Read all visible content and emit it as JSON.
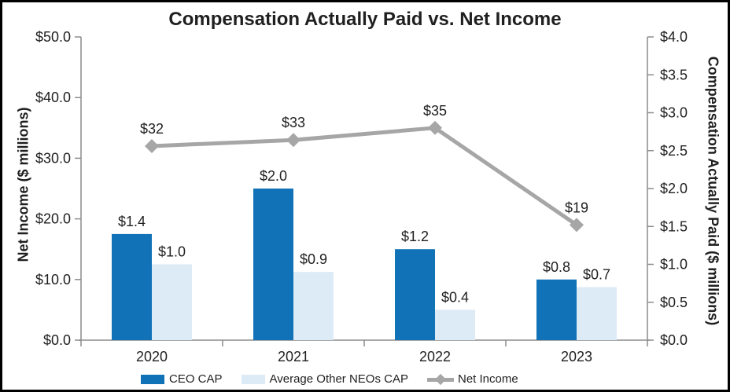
{
  "title": "Compensation Actually Paid vs. Net Income",
  "chart_data": {
    "type": "combo-bar-line",
    "title": "Compensation Actually Paid vs. Net Income",
    "categories": [
      "2020",
      "2021",
      "2022",
      "2023"
    ],
    "series": [
      {
        "name": "CEO CAP",
        "type": "bar",
        "axis": "right",
        "color": "#1172B8",
        "values": [
          1.4,
          2.0,
          1.2,
          0.8
        ],
        "labels": [
          "$1.4",
          "$2.0",
          "$1.2",
          "$0.8"
        ]
      },
      {
        "name": "Average Other NEOs CAP",
        "type": "bar",
        "axis": "right",
        "color": "#DDEBF7",
        "values": [
          1.0,
          0.9,
          0.4,
          0.7
        ],
        "labels": [
          "$1.0",
          "$0.9",
          "$0.4",
          "$0.7"
        ]
      },
      {
        "name": "Net Income",
        "type": "line",
        "axis": "left",
        "marker": "diamond",
        "color": "#A6A6A6",
        "values": [
          32,
          33,
          35,
          19
        ],
        "labels": [
          "$32",
          "$33",
          "$35",
          "$19"
        ]
      }
    ],
    "left_axis": {
      "title": "Net Income ($ millions)",
      "min": 0,
      "max": 50,
      "tick_values": [
        0,
        10,
        20,
        30,
        40,
        50
      ],
      "tick_labels": [
        "$0.0",
        "$10.0",
        "$20.0",
        "$30.0",
        "$40.0",
        "$50.0"
      ]
    },
    "right_axis": {
      "title": "Compensation Actually Paid ($ millions)",
      "min": 0,
      "max": 4,
      "tick_values": [
        0,
        0.5,
        1.0,
        1.5,
        2.0,
        2.5,
        3.0,
        3.5,
        4.0
      ],
      "tick_labels": [
        "$0.0",
        "$0.5",
        "$1.0",
        "$1.5",
        "$2.0",
        "$2.5",
        "$3.0",
        "$3.5",
        "$4.0"
      ]
    },
    "legend": {
      "position": "bottom"
    },
    "grid": false,
    "colors": {
      "axis_line": "#8C8C8C",
      "text": "#1f1f1f",
      "frame_border": "#000000",
      "background": "#FFFFFF"
    }
  }
}
